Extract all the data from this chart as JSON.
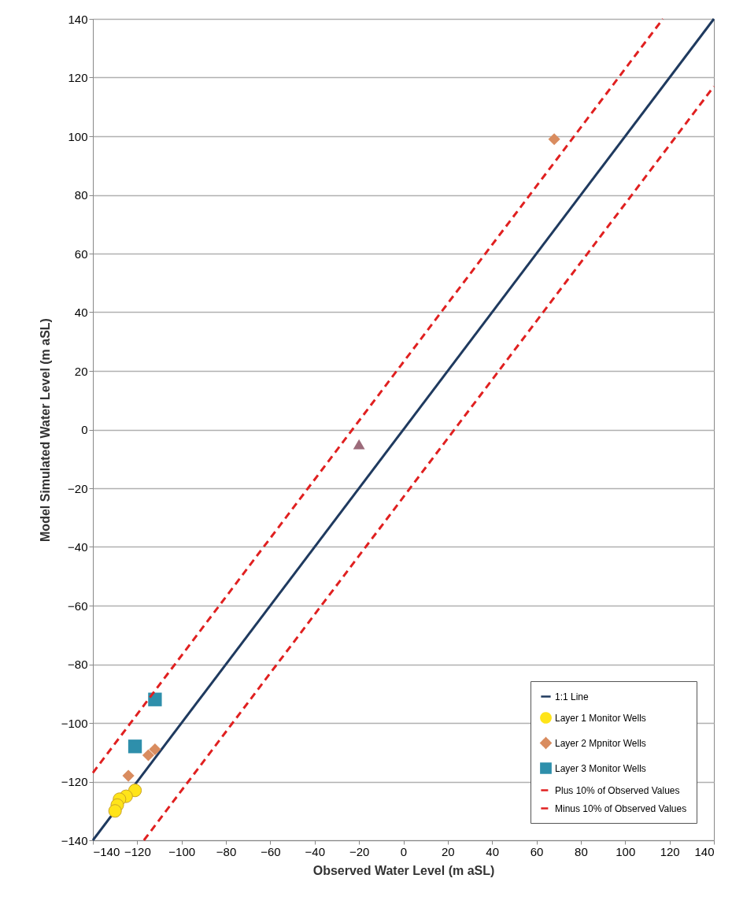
{
  "chart_data": {
    "type": "scatter",
    "xlabel": "Observed Water Level (m aSL)",
    "ylabel": "Model Simulated Water Level (m aSL)",
    "xlim": [
      -140,
      140
    ],
    "ylim": [
      -140,
      140
    ],
    "xticks": [
      -140,
      -120,
      -100,
      -80,
      -60,
      -40,
      -20,
      0,
      20,
      40,
      60,
      80,
      100,
      120,
      140
    ],
    "yticks": [
      -140,
      -120,
      -100,
      -80,
      -60,
      -40,
      -20,
      0,
      20,
      40,
      60,
      80,
      100,
      120,
      140
    ],
    "grid": "y",
    "legend": "bottom right",
    "series": [
      {
        "name": "1:1 Line",
        "type": "line",
        "line_style": "solid",
        "color": "#1f3a5f",
        "x": [
          -140,
          140
        ],
        "values": [
          -140,
          140
        ]
      },
      {
        "name": "Layer 1 Monitor Wells",
        "marker": "circle",
        "color": "#ffe419",
        "x": [
          -121,
          -125,
          -128,
          -129,
          -130
        ],
        "values": [
          -123,
          -125,
          -126,
          -128,
          -130
        ]
      },
      {
        "name": "Layer 2 Mpnitor Wells",
        "marker": "diamond",
        "color": "#d98c5f",
        "x": [
          68,
          -112,
          -115,
          -124
        ],
        "values": [
          99,
          -109,
          -111,
          -118
        ]
      },
      {
        "name": "Layer 3 Monitor Wells",
        "marker": "square",
        "color": "#2e8fab",
        "x": [
          -112,
          -121
        ],
        "values": [
          -92,
          -108
        ]
      },
      {
        "marker": "triangle",
        "color": "#9c6b7a",
        "x": [
          -20
        ],
        "values": [
          -5
        ]
      },
      {
        "name": "Plus 10% of Observed Values",
        "type": "line",
        "line_style": "dashed",
        "color": "#e02020",
        "x": [
          -140,
          117
        ],
        "values": [
          -117,
          140
        ]
      },
      {
        "name": "Minus 10% of Observed Values",
        "type": "line",
        "line_style": "dashed",
        "color": "#e02020",
        "x": [
          -117,
          140
        ],
        "values": [
          -140,
          117
        ]
      }
    ]
  }
}
